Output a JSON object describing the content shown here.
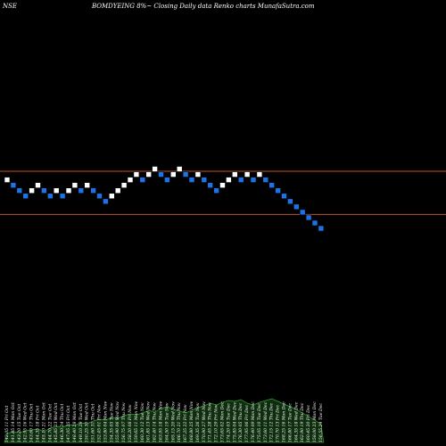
{
  "header": {
    "exchange": "NSE",
    "title": "BOMDYEING 8%~  Closing Daily data  Renko  charts MunafaSutra.com"
  },
  "colors": {
    "background": "#000000",
    "up_brick": "#ffffff",
    "down_brick": "#1a73e8",
    "line": "#c0552a",
    "volume_fill": "#0f2e0f",
    "volume_line": "#2f9e2f"
  },
  "chart_data": {
    "type": "renko",
    "brick_dirs": [
      "up",
      "down",
      "down",
      "down",
      "up",
      "up",
      "down",
      "down",
      "up",
      "down",
      "up",
      "up",
      "down",
      "up",
      "down",
      "down",
      "down",
      "up",
      "up",
      "up",
      "up",
      "up",
      "down",
      "up",
      "up",
      "down",
      "down",
      "up",
      "up",
      "down",
      "down",
      "up",
      "down",
      "down",
      "down",
      "up",
      "up",
      "up",
      "down",
      "up",
      "down",
      "up",
      "down",
      "down",
      "down",
      "down",
      "down",
      "down",
      "down",
      "down",
      "down",
      "down"
    ],
    "brick_levels": [
      8,
      7,
      6,
      5,
      6,
      7,
      6,
      5,
      6,
      5,
      6,
      7,
      6,
      7,
      6,
      5,
      4,
      5,
      6,
      7,
      8,
      9,
      8,
      9,
      10,
      9,
      8,
      9,
      10,
      9,
      8,
      9,
      8,
      7,
      6,
      7,
      8,
      9,
      8,
      9,
      8,
      9,
      8,
      7,
      6,
      5,
      4,
      3,
      2,
      1,
      0,
      -1
    ],
    "horizontal_lines": [
      2,
      10
    ],
    "volume_profile": [
      10,
      12,
      11,
      13,
      14,
      15,
      12,
      16,
      18,
      17,
      20,
      19,
      22,
      21,
      24,
      26,
      25,
      28,
      27,
      30,
      32,
      31,
      33,
      36,
      34,
      38,
      40,
      37,
      35,
      33,
      36,
      39,
      41,
      44,
      42,
      45,
      47,
      46,
      48,
      44,
      42,
      45,
      47,
      49,
      46,
      43,
      40,
      37,
      33,
      29,
      25,
      20
    ],
    "x_tick_labels": [
      "142.05 11 Fri Oct",
      "141.85 14 Mon Oct",
      "143.20 15 Tue Oct",
      "142.95 16 Wed Oct",
      "143.60 17 Thu Oct",
      "144.35 18 Fri Oct",
      "145.10 21 Mon Oct",
      "144.70 22 Tue Oct",
      "145.85 23 Wed Oct",
      "146.30 24 Thu Oct",
      "147.05 25 Fri Oct",
      "148.40 28 Mon Oct",
      "149.10 29 Tue Oct",
      "150.25 30 Wed Oct",
      "151.60 31 Thu Oct",
      "152.45 01 Fri Nov",
      "153.80 04 Mon Nov",
      "154.35 05 Tue Nov",
      "155.90 06 Wed Nov",
      "156.75 07 Thu Nov",
      "158.20 08 Fri Nov",
      "159.65 11 Mon Nov",
      "160.30 12 Tue Nov",
      "161.85 13 Wed Nov",
      "162.40 14 Thu Nov",
      "163.95 18 Mon Nov",
      "164.50 19 Tue Nov",
      "165.15 20 Wed Nov",
      "166.70 21 Thu Nov",
      "167.25 22 Fri Nov",
      "168.80 25 Mon Nov",
      "169.35 26 Tue Nov",
      "170.90 27 Wed Nov",
      "171.45 28 Thu Nov",
      "172.10 29 Fri Nov",
      "173.65 02 Mon Dec",
      "174.20 03 Tue Dec",
      "175.85 04 Wed Dec",
      "176.30 05 Thu Dec",
      "177.95 06 Fri Dec",
      "176.40 09 Mon Dec",
      "175.05 10 Tue Dec",
      "173.60 11 Wed Dec",
      "172.15 12 Thu Dec",
      "170.70 13 Fri Dec",
      "168.25 16 Mon Dec",
      "166.80 17 Tue Dec",
      "164.35 18 Wed Dec",
      "162.90 19 Thu Dec",
      "160.45 20 Fri Dec",
      "158.00 23 Mon Dec",
      "156.55 24 Tue Dec"
    ]
  }
}
